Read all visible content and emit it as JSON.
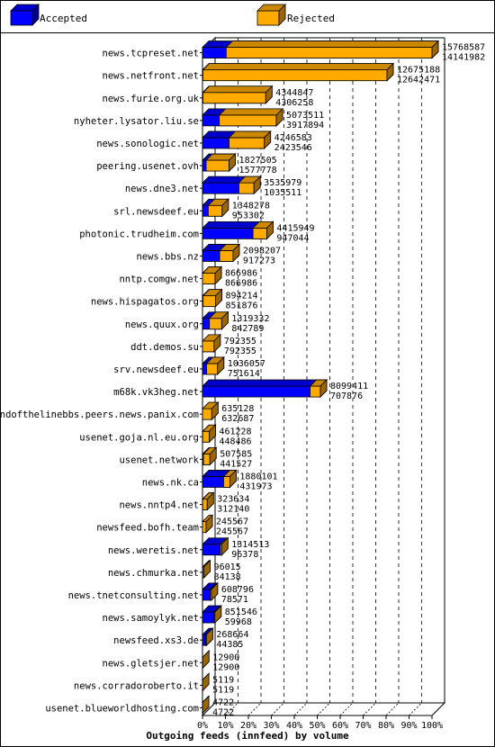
{
  "legend": [
    {
      "label": "Accepted",
      "color": "#0000ff"
    },
    {
      "label": "Rejected",
      "color": "#ffaa00"
    }
  ],
  "chart_data": {
    "type": "bar",
    "orientation": "horizontal",
    "title": "Outgoing feeds (innfeed) by volume",
    "xlim": [
      0,
      100
    ],
    "x_tick_labels": [
      "0%",
      "10%",
      "20%",
      "30%",
      "40%",
      "50%",
      "60%",
      "70%",
      "80%",
      "90%",
      "100%"
    ],
    "categories": [
      "news.tcpreset.net",
      "news.netfront.net",
      "news.furie.org.uk",
      "nyheter.lysator.liu.se",
      "news.sonologic.net",
      "peering.usenet.ovh",
      "news.dne3.net",
      "srl.newsdeef.eu",
      "photonic.trudheim.com",
      "news.bbs.nz",
      "nntp.comgw.net",
      "news.hispagatos.org",
      "news.quux.org",
      "ddt.demos.su",
      "srv.newsdeef.eu",
      "m68k.vk3heg.net",
      "endofthelinebbs.peers.news.panix.com",
      "usenet.goja.nl.eu.org",
      "usenet.network",
      "news.nk.ca",
      "news.nntp4.net",
      "newsfeed.bofh.team",
      "news.weretis.net",
      "news.chmurka.net",
      "news.tnetconsulting.net",
      "news.samoylyk.net",
      "newsfeed.xs3.de",
      "news.gletsjer.net",
      "news.corradoroberto.it",
      "usenet.blueworldhosting.com"
    ],
    "series": [
      {
        "name": "Accepted",
        "color": "#0000ff",
        "values": [
          15768587,
          12675188,
          4344847,
          5073511,
          4246583,
          1827505,
          3535979,
          1348278,
          4415949,
          2098207,
          866986,
          894214,
          1319332,
          792355,
          1036057,
          8099411,
          635128,
          461228,
          507585,
          1880101,
          323634,
          245567,
          1314513,
          96015,
          608796,
          851546,
          268664,
          12900,
          5119,
          4722
        ]
      },
      {
        "name": "Rejected",
        "color": "#ffaa00",
        "values": [
          14141982,
          12642471,
          4306258,
          3917894,
          2423546,
          1577778,
          1035511,
          953302,
          947044,
          917273,
          866986,
          851876,
          842789,
          792355,
          751614,
          707876,
          632687,
          448486,
          441527,
          431973,
          312140,
          245567,
          96378,
          84138,
          78571,
          59968,
          44385,
          12900,
          5119,
          4722
        ]
      }
    ],
    "grid": true
  }
}
